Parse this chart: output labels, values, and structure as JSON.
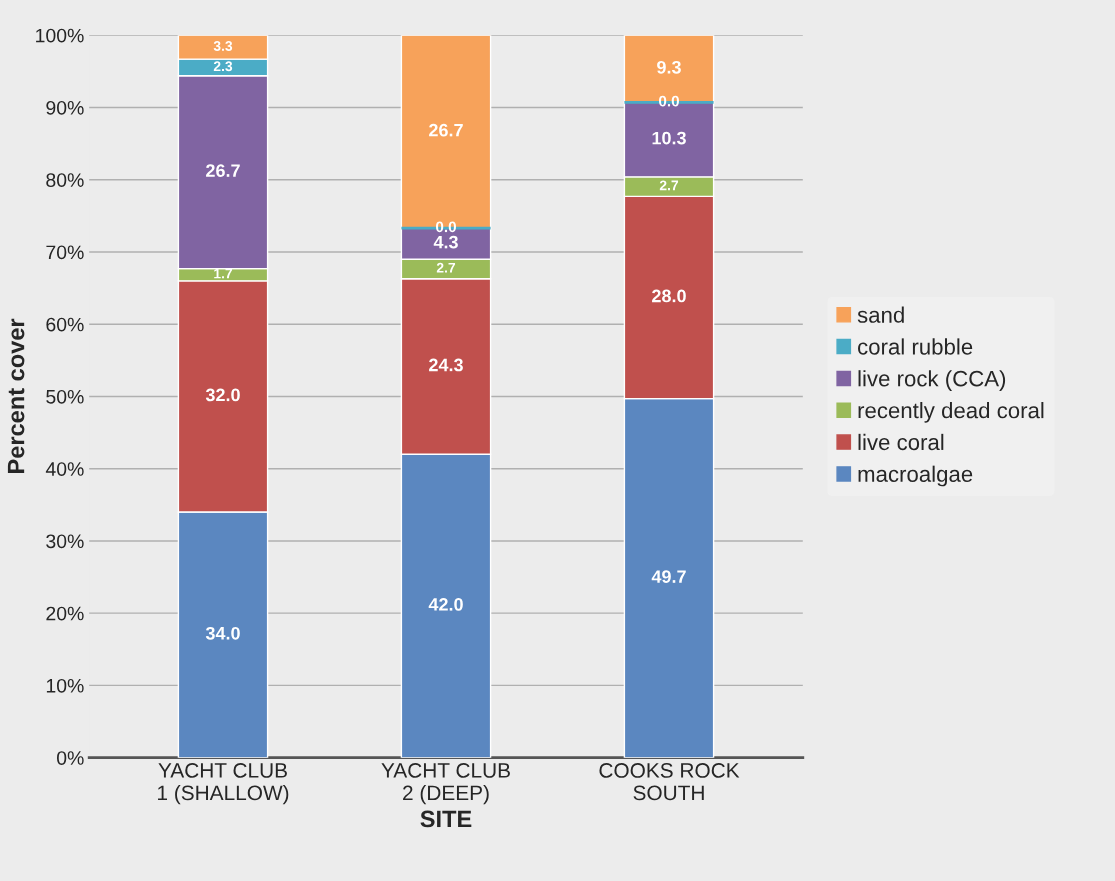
{
  "chart_data": {
    "type": "bar",
    "stacked": true,
    "xlabel": "SITE",
    "ylabel": "Percent cover",
    "categories": [
      "YACHT CLUB\n1 (SHALLOW)",
      "YACHT CLUB\n2 (DEEP)",
      "COOKS ROCK\nSOUTH"
    ],
    "series": [
      {
        "name": "macroalgae",
        "color": "#5b87c0",
        "values": [
          34.0,
          42.0,
          49.7
        ],
        "value_labels": [
          "34.0",
          "42.0",
          "49.7"
        ]
      },
      {
        "name": "live coral",
        "color": "#c0504d",
        "values": [
          32.0,
          24.3,
          28.0
        ],
        "value_labels": [
          "32.0",
          "24.3",
          "28.0"
        ]
      },
      {
        "name": "recently dead coral",
        "color": "#9bbb59",
        "values": [
          1.7,
          2.7,
          2.7
        ],
        "value_labels": [
          "1.7",
          "2.7",
          "2.7"
        ]
      },
      {
        "name": "live rock (CCA)",
        "color": "#8064a2",
        "values": [
          26.7,
          4.3,
          10.3
        ],
        "value_labels": [
          "26.7",
          "4.3",
          "10.3"
        ]
      },
      {
        "name": "coral rubble",
        "color": "#4bacc6",
        "values": [
          2.3,
          0.0,
          0.0
        ],
        "value_labels": [
          "2.3",
          "0.0",
          "0.0"
        ]
      },
      {
        "name": "sand",
        "color": "#f7a25a",
        "values": [
          3.3,
          26.7,
          9.3
        ],
        "value_labels": [
          "3.3",
          "26.7",
          "9.3"
        ]
      }
    ],
    "ylim": [
      0,
      100
    ],
    "yticks": [
      {
        "value": 0,
        "label": "0%"
      },
      {
        "value": 10,
        "label": "10%"
      },
      {
        "value": 20,
        "label": "20%"
      },
      {
        "value": 30,
        "label": "30%"
      },
      {
        "value": 40,
        "label": "40%"
      },
      {
        "value": 50,
        "label": "50%"
      },
      {
        "value": 60,
        "label": "60%"
      },
      {
        "value": 70,
        "label": "70%"
      },
      {
        "value": 80,
        "label": "80%"
      },
      {
        "value": 90,
        "label": "90%"
      },
      {
        "value": 100,
        "label": "100%"
      }
    ],
    "grid": "y",
    "legend": "right"
  }
}
